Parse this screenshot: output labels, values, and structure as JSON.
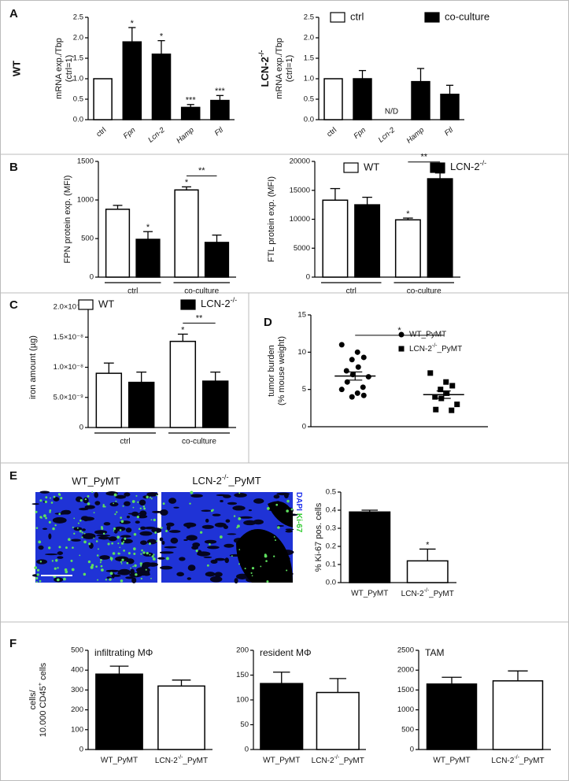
{
  "chart_data": [
    {
      "type": "bar",
      "panel": "A",
      "row_label": "WT",
      "ylabel": [
        "mRNA exp./Tbp",
        "(ctrl=1)"
      ],
      "categories": [
        "ctrl",
        "Fpn",
        "Lcn-2",
        "Hamp",
        "Ftl"
      ],
      "values": [
        1.0,
        1.9,
        1.6,
        0.3,
        0.47
      ],
      "errors": [
        null,
        0.35,
        0.33,
        0.07,
        0.12
      ],
      "bar_colors": [
        "#ffffff",
        "#000000",
        "#000000",
        "#000000",
        "#000000"
      ],
      "stars": [
        null,
        "*",
        "*",
        "***",
        "***"
      ],
      "ylim": [
        0,
        2.5
      ],
      "yticks": [
        {
          "value": 0,
          "label": "0.0"
        },
        0.5,
        {
          "value": 1,
          "label": "1.0"
        },
        1.5,
        {
          "value": 2,
          "label": "2.0"
        },
        2.5
      ]
    },
    {
      "type": "bar",
      "row_label": "LCN-2-/-",
      "ylabel": [
        "mRNA exp./Tbp",
        "(ctrl=1)"
      ],
      "categories": [
        "ctrl",
        "Fpn",
        "Lcn-2",
        "Hamp",
        "Ftl"
      ],
      "values": [
        1.0,
        1.0,
        null,
        0.93,
        0.62
      ],
      "errors": [
        null,
        0.2,
        null,
        0.32,
        0.22
      ],
      "bar_colors": [
        "#ffffff",
        "#000000",
        "#000000",
        "#000000",
        "#000000"
      ],
      "stars": [
        null,
        null,
        "N/D",
        null,
        null
      ],
      "legend": [
        {
          "name": "ctrl",
          "color": "#ffffff"
        },
        {
          "name": "co-culture",
          "color": "#000000"
        }
      ],
      "ylim": [
        0,
        2.5
      ],
      "yticks": [
        {
          "value": 0,
          "label": "0.0"
        },
        0.5,
        {
          "value": 1,
          "label": "1.0"
        },
        1.5,
        {
          "value": 2,
          "label": "2.0"
        },
        2.5
      ]
    },
    {
      "type": "grouped_bar",
      "panel": "B",
      "ylabel": [
        "FPN protein exp. (MFI)"
      ],
      "categories": [
        "ctrl",
        "co-culture"
      ],
      "series": [
        {
          "color": "#ffffff",
          "values": [
            880,
            1130
          ],
          "errors": [
            50,
            40
          ],
          "stars": [
            null,
            "*"
          ]
        },
        {
          "color": "#000000",
          "values": [
            490,
            450
          ],
          "errors": [
            100,
            95
          ],
          "stars": [
            "*",
            null
          ]
        }
      ],
      "brackets": [
        {
          "group": 1,
          "label": "**"
        }
      ],
      "ylim": [
        0,
        1500
      ],
      "yticks": [
        0,
        500,
        1000,
        1500
      ]
    },
    {
      "type": "grouped_bar",
      "ylabel": [
        "FTL protein exp. (MFI)"
      ],
      "categories": [
        "ctrl",
        "co-culture"
      ],
      "series": [
        {
          "name": "WT",
          "color": "#ffffff",
          "values": [
            13300,
            9900
          ],
          "errors": [
            2000,
            300
          ],
          "stars": [
            null,
            "*"
          ]
        },
        {
          "name": "LCN-2-/-",
          "color": "#000000",
          "values": [
            12500,
            17000
          ],
          "errors": [
            1300,
            1000
          ]
        }
      ],
      "brackets": [
        {
          "group": 1,
          "label": "**"
        }
      ],
      "legend": true,
      "ylim": [
        0,
        20000
      ],
      "yticks": [
        0,
        5000,
        10000,
        15000,
        20000
      ]
    },
    {
      "type": "grouped_bar",
      "panel": "C",
      "ylabel": [
        "iron amount (µg)"
      ],
      "categories": [
        "ctrl",
        "co-culture"
      ],
      "series": [
        {
          "name": "WT",
          "color": "#ffffff",
          "values": [
            9e-09,
            1.43e-08
          ],
          "errors": [
            1.7e-09,
            1.2e-09
          ],
          "stars": [
            null,
            "*"
          ]
        },
        {
          "name": "LCN-2-/-",
          "color": "#000000",
          "values": [
            7.5e-09,
            7.7e-09
          ],
          "errors": [
            1.7e-09,
            1.5e-09
          ]
        }
      ],
      "brackets": [
        {
          "group": 1,
          "label": "**"
        }
      ],
      "legend": true,
      "ylim": [
        0,
        2e-08
      ],
      "yticks": [
        0,
        {
          "value": 5e-09,
          "label": "5.0×10⁻⁹"
        },
        {
          "value": 1e-08,
          "label": "1.0×10⁻⁸"
        },
        {
          "value": 1.5e-08,
          "label": "1.5×10⁻⁸"
        },
        {
          "value": 2e-08,
          "label": "2.0×10⁻⁸"
        }
      ]
    },
    {
      "type": "dotplot",
      "panel": "D",
      "ylabel": [
        "tumor burden",
        "(% mouse weight)"
      ],
      "series": [
        {
          "name": "WT_PyMT",
          "marker": "circle",
          "color": "#000000",
          "values": [
            11,
            10,
            9.3,
            9,
            8,
            7.5,
            7,
            6.7,
            6,
            5.3,
            5,
            4.5,
            4.2,
            4
          ],
          "mean": 6.8,
          "sem": 0.55
        },
        {
          "name": "LCN-2-/-_PyMT",
          "marker": "square",
          "color": "#000000",
          "values": [
            7.2,
            6,
            5.5,
            5,
            4.5,
            4,
            3.8,
            3,
            2.3,
            2.2
          ],
          "mean": 4.3,
          "sem": 0.5
        }
      ],
      "brackets": [
        {
          "label": "*"
        }
      ],
      "legend": true,
      "ylim": [
        0,
        15
      ],
      "yticks": [
        0,
        5,
        10,
        15
      ]
    },
    {
      "type": "bar",
      "panel": "E",
      "ylabel": [
        "% Ki-67 pos. cells"
      ],
      "categories": [
        "WT_PyMT",
        "LCN-2-/-_PyMT"
      ],
      "values": [
        0.39,
        0.12
      ],
      "errors": [
        0.01,
        0.065
      ],
      "bar_colors": [
        "#000000",
        "#ffffff"
      ],
      "stars": [
        null,
        "*"
      ],
      "ylim": [
        0,
        0.5
      ],
      "yticks": [
        {
          "value": 0,
          "label": "0.0"
        },
        0.1,
        0.2,
        0.3,
        0.4,
        0.5
      ]
    },
    {
      "type": "bar",
      "panel": "F",
      "ylabel": [
        "cells/",
        "10.000 CD45+ cells"
      ],
      "title": "infiltrating MΦ",
      "categories": [
        "WT_PyMT",
        "LCN-2-/-_PyMT"
      ],
      "values": [
        380,
        320
      ],
      "errors": [
        40,
        30
      ],
      "bar_colors": [
        "#000000",
        "#ffffff"
      ],
      "ylim": [
        0,
        500
      ],
      "yticks": [
        0,
        100,
        200,
        300,
        400,
        500
      ]
    },
    {
      "type": "bar",
      "title": "resident MΦ",
      "categories": [
        "WT_PyMT",
        "LCN-2-/-_PyMT"
      ],
      "values": [
        133,
        115
      ],
      "errors": [
        23,
        28
      ],
      "bar_colors": [
        "#000000",
        "#ffffff"
      ],
      "ylim": [
        0,
        200
      ],
      "yticks": [
        0,
        50,
        100,
        150,
        200
      ]
    },
    {
      "type": "bar",
      "title": "TAM",
      "categories": [
        "WT_PyMT",
        "LCN-2-/-_PyMT"
      ],
      "values": [
        1650,
        1730
      ],
      "errors": [
        170,
        250
      ],
      "bar_colors": [
        "#000000",
        "#ffffff"
      ],
      "ylim": [
        0,
        2500
      ],
      "yticks": [
        0,
        500,
        1000,
        1500,
        2000,
        2500
      ]
    }
  ],
  "micrographs": {
    "labels": [
      "WT_PyMT",
      "LCN-2-/-_PyMT"
    ],
    "channels": [
      "DAPI",
      "Ki-67"
    ]
  }
}
